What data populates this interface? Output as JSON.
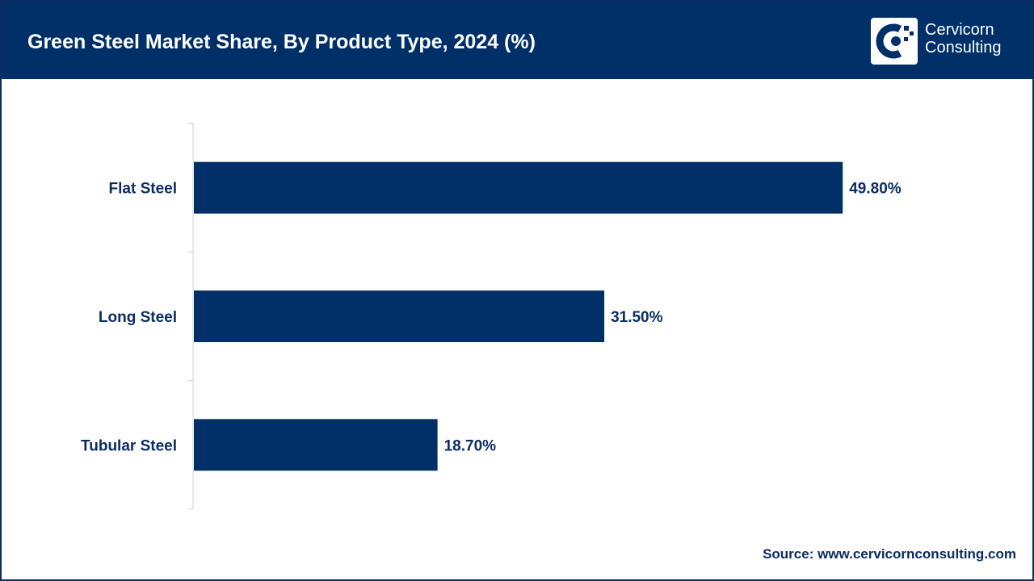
{
  "header": {
    "title": "Green Steel Market Share, By Product Type, 2024 (%)",
    "brand_line1": "Cervicorn",
    "brand_line2": "Consulting",
    "logo_icon": "cervicorn-logo-icon"
  },
  "footer": {
    "source": "Source: www.cervicornconsulting.com"
  },
  "colors": {
    "header_bg": "#003067",
    "bar": "#003067",
    "text": "#0b2c64",
    "axis": "#d0d0d0"
  },
  "chart_data": {
    "type": "bar",
    "orientation": "horizontal",
    "categories": [
      "Flat Steel",
      "Long Steel",
      "Tubular Steel"
    ],
    "values": [
      49.8,
      31.5,
      18.7
    ],
    "value_labels": [
      "49.80%",
      "31.50%",
      "18.70%"
    ],
    "xlim": [
      0,
      62
    ],
    "grid": false,
    "legend": "none"
  }
}
